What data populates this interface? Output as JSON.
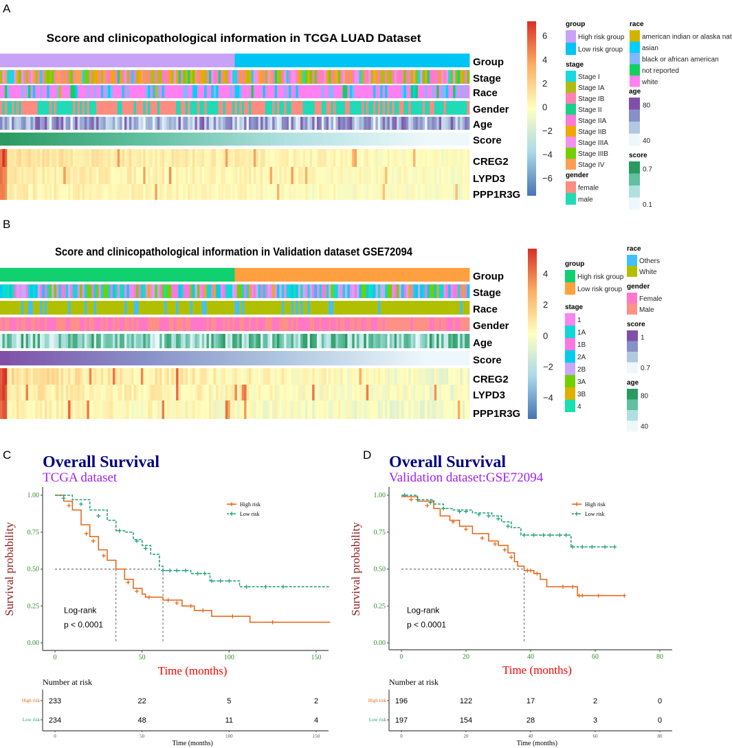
{
  "panels": {
    "a": "A",
    "b": "B",
    "c": "C",
    "d": "D"
  },
  "chart_data": [
    {
      "type": "heatmap",
      "id": "A",
      "title": "Score and clinicopathological information in TCGA LUAD Dataset",
      "row_labels": [
        "Group",
        "Stage",
        "Race",
        "Gender",
        "Age",
        "Score",
        "CREG2",
        "LYPD3",
        "PPP1R3G"
      ],
      "colorbar": {
        "ticks": [
          "6",
          "4",
          "2",
          "0",
          "−2",
          "−4",
          "−6"
        ],
        "range": [
          -7.5,
          7.2
        ],
        "colors": [
          "#4575b4",
          "#abd9e9",
          "#ffffbf",
          "#fdae61",
          "#d73027"
        ]
      },
      "legends": {
        "group": {
          "title": "group",
          "items": [
            {
              "label": "High risk group",
              "color": "#c8a2f6"
            },
            {
              "label": "Low risk group",
              "color": "#00c4f4"
            }
          ]
        },
        "stage": {
          "title": "stage",
          "items": [
            {
              "label": "Stage I",
              "color": "#18d8e0"
            },
            {
              "label": "Stage IA",
              "color": "#b0bd10"
            },
            {
              "label": "Stage IB",
              "color": "#ff82b4"
            },
            {
              "label": "Stage II",
              "color": "#18d088"
            },
            {
              "label": "Stage IIA",
              "color": "#ff78d8"
            },
            {
              "label": "Stage IIB",
              "color": "#f0a800"
            },
            {
              "label": "Stage IIIA",
              "color": "#f490f0"
            },
            {
              "label": "Stage IIIB",
              "color": "#70d000"
            },
            {
              "label": "Stage IV",
              "color": "#ff9e50"
            }
          ]
        },
        "gender": {
          "title": "gender",
          "items": [
            {
              "label": "female",
              "color": "#ff8c80"
            },
            {
              "label": "male",
              "color": "#20dab8"
            }
          ]
        },
        "race": {
          "title": "race",
          "items": [
            {
              "label": "american indian or alaska native",
              "color": "#d4b300"
            },
            {
              "label": "asian",
              "color": "#00d0f8"
            },
            {
              "label": "black or african american",
              "color": "#80b8ff"
            },
            {
              "label": "not reported",
              "color": "#10d060"
            },
            {
              "label": "white",
              "color": "#ff80f0"
            }
          ]
        },
        "age": {
          "title": "age",
          "high": "80",
          "low": "40",
          "colors": [
            "#8050a8",
            "#8890c8",
            "#b0c8e0",
            "#eef8fc"
          ]
        },
        "score": {
          "title": "score",
          "high": "0.7",
          "low": "0.1",
          "colors": [
            "#2a9a60",
            "#60c0a0",
            "#b0e0e0",
            "#eef8fa"
          ]
        }
      },
      "high_risk_fraction": 0.5
    },
    {
      "type": "heatmap",
      "id": "B",
      "title": "Score and clinicopathological information in Validation dataset GSE72094",
      "row_labels": [
        "Group",
        "Stage",
        "Race",
        "Gender",
        "Age",
        "Score",
        "CREG2",
        "LYPD3",
        "PPP1R3G"
      ],
      "colorbar": {
        "ticks": [
          "4",
          "2",
          "0",
          "−2",
          "−4"
        ],
        "range": [
          -5.4,
          5.6
        ],
        "colors": [
          "#4575b4",
          "#abd9e9",
          "#ffffbf",
          "#fdae61",
          "#d73027"
        ]
      },
      "legends": {
        "group": {
          "title": "group",
          "items": [
            {
              "label": "High risk group",
              "color": "#10d070"
            },
            {
              "label": "Low risk group",
              "color": "#ffa040"
            }
          ]
        },
        "stage": {
          "title": "stage",
          "items": [
            {
              "label": "1",
              "color": "#f885f0"
            },
            {
              "label": "1A",
              "color": "#10d8d8"
            },
            {
              "label": "1B",
              "color": "#f878e0"
            },
            {
              "label": "2A",
              "color": "#00ccf0"
            },
            {
              "label": "2B",
              "color": "#c8a8f8"
            },
            {
              "label": "3A",
              "color": "#70d000"
            },
            {
              "label": "3B",
              "color": "#e0b000"
            },
            {
              "label": "4",
              "color": "#18e0b0"
            }
          ]
        },
        "race": {
          "title": "race",
          "items": [
            {
              "label": "Others",
              "color": "#40c0ff"
            },
            {
              "label": "White",
              "color": "#b0c000"
            }
          ]
        },
        "gender": {
          "title": "gender",
          "items": [
            {
              "label": "Female",
              "color": "#ff78c8"
            },
            {
              "label": "Male",
              "color": "#ff9088"
            }
          ]
        },
        "score": {
          "title": "score",
          "high": "1",
          "low": "0.7",
          "colors": [
            "#8050a8",
            "#8890c8",
            "#b0c8e0",
            "#eef8fc"
          ]
        },
        "age": {
          "title": "age",
          "high": "80",
          "low": "40",
          "colors": [
            "#2a9a60",
            "#60c0a0",
            "#b0e0e0",
            "#eef8fa"
          ]
        }
      },
      "high_risk_fraction": 0.5
    },
    {
      "type": "line",
      "id": "C",
      "title": "Overall Survival",
      "subtitle": "TCGA dataset",
      "xlabel": "Time (months)",
      "ylabel": "Survival probability",
      "xlim": [
        0,
        158
      ],
      "ylim": [
        0,
        1
      ],
      "xticks": [
        "0",
        "50",
        "100",
        "150"
      ],
      "xtick_values": [
        0,
        50,
        100,
        150
      ],
      "yticks": [
        "1.00",
        "0.75",
        "0.50",
        "0.25",
        "0.00"
      ],
      "ytick_values": [
        1,
        0.75,
        0.5,
        0.25,
        0
      ],
      "log_rank": "Log-rank",
      "p_value": "p < 0.0001",
      "medians": [
        35,
        62
      ],
      "series": [
        {
          "name": "High risk",
          "color": "#e6600e",
          "dashed": false,
          "points": [
            [
              0,
              1
            ],
            [
              5,
              0.96
            ],
            [
              10,
              0.9
            ],
            [
              15,
              0.8
            ],
            [
              20,
              0.72
            ],
            [
              25,
              0.63
            ],
            [
              30,
              0.56
            ],
            [
              35,
              0.5
            ],
            [
              40,
              0.43
            ],
            [
              45,
              0.37
            ],
            [
              50,
              0.33
            ],
            [
              52,
              0.31
            ],
            [
              62,
              0.29
            ],
            [
              73,
              0.25
            ],
            [
              80,
              0.22
            ],
            [
              90,
              0.18
            ],
            [
              112,
              0.14
            ],
            [
              158,
              0.14
            ]
          ],
          "censored": [
            [
              8,
              0.93
            ],
            [
              18,
              0.74
            ],
            [
              22,
              0.69
            ],
            [
              28,
              0.59
            ],
            [
              42,
              0.41
            ],
            [
              47,
              0.35
            ],
            [
              54,
              0.31
            ],
            [
              65,
              0.29
            ],
            [
              70,
              0.27
            ],
            [
              78,
              0.25
            ],
            [
              85,
              0.22
            ],
            [
              102,
              0.18
            ],
            [
              125,
              0.14
            ]
          ]
        },
        {
          "name": "Low risk",
          "color": "#1a9c74",
          "dashed": true,
          "points": [
            [
              0,
              1
            ],
            [
              10,
              0.97
            ],
            [
              20,
              0.9
            ],
            [
              30,
              0.83
            ],
            [
              35,
              0.76
            ],
            [
              40,
              0.75
            ],
            [
              45,
              0.7
            ],
            [
              50,
              0.66
            ],
            [
              55,
              0.6
            ],
            [
              60,
              0.52
            ],
            [
              62,
              0.49
            ],
            [
              75,
              0.49
            ],
            [
              78,
              0.47
            ],
            [
              88,
              0.47
            ],
            [
              89,
              0.42
            ],
            [
              105,
              0.42
            ],
            [
              106,
              0.38
            ],
            [
              158,
              0.38
            ]
          ],
          "censored": [
            [
              5,
              0.98
            ],
            [
              15,
              0.94
            ],
            [
              25,
              0.86
            ],
            [
              37,
              0.76
            ],
            [
              47,
              0.69
            ],
            [
              52,
              0.64
            ],
            [
              62,
              0.49
            ],
            [
              66,
              0.49
            ],
            [
              70,
              0.49
            ],
            [
              75,
              0.49
            ],
            [
              82,
              0.47
            ],
            [
              86,
              0.47
            ],
            [
              90,
              0.42
            ],
            [
              95,
              0.42
            ],
            [
              100,
              0.42
            ],
            [
              110,
              0.38
            ],
            [
              121,
              0.38
            ],
            [
              131,
              0.38
            ]
          ]
        }
      ],
      "risk_table": {
        "title": "Number at risk",
        "xlabel": "Time (months)",
        "rows": [
          {
            "label": "High risk",
            "values": [
              "233",
              "22",
              "5",
              "2"
            ]
          },
          {
            "label": "Low risk",
            "values": [
              "234",
              "48",
              "11",
              "4"
            ]
          }
        ]
      }
    },
    {
      "type": "line",
      "id": "D",
      "title": "Overall Survival",
      "subtitle": "Validation dataset:GSE72094",
      "xlabel": "Time (months)",
      "ylabel": "Survival probability",
      "xlim": [
        0,
        84
      ],
      "ylim": [
        0,
        1
      ],
      "xticks": [
        "0",
        "20",
        "40",
        "60",
        "80"
      ],
      "xtick_values": [
        0,
        20,
        40,
        60,
        80
      ],
      "yticks": [
        "1.00",
        "0.75",
        "0.50",
        "0.25",
        "0.00"
      ],
      "ytick_values": [
        1,
        0.75,
        0.5,
        0.25,
        0
      ],
      "log_rank": "Log-rank",
      "p_value": "p < 0.0001",
      "medians": [
        38
      ],
      "series": [
        {
          "name": "High risk",
          "color": "#e6600e",
          "dashed": false,
          "points": [
            [
              0,
              0.99
            ],
            [
              5,
              0.96
            ],
            [
              10,
              0.91
            ],
            [
              12,
              0.86
            ],
            [
              15,
              0.83
            ],
            [
              18,
              0.79
            ],
            [
              22,
              0.74
            ],
            [
              27,
              0.69
            ],
            [
              30,
              0.66
            ],
            [
              33,
              0.61
            ],
            [
              35,
              0.55
            ],
            [
              36,
              0.52
            ],
            [
              38,
              0.49
            ],
            [
              41,
              0.47
            ],
            [
              43,
              0.43
            ],
            [
              45,
              0.38
            ],
            [
              54,
              0.38
            ],
            [
              54.5,
              0.32
            ],
            [
              69,
              0.32
            ]
          ],
          "censored": [
            [
              3,
              0.97
            ],
            [
              8,
              0.93
            ],
            [
              16,
              0.82
            ],
            [
              20,
              0.77
            ],
            [
              25,
              0.71
            ],
            [
              29,
              0.67
            ],
            [
              32,
              0.63
            ],
            [
              34,
              0.58
            ],
            [
              39,
              0.49
            ],
            [
              40,
              0.49
            ],
            [
              42,
              0.47
            ],
            [
              50,
              0.38
            ],
            [
              53,
              0.38
            ],
            [
              55,
              0.32
            ],
            [
              56,
              0.32
            ],
            [
              61,
              0.32
            ],
            [
              69,
              0.32
            ]
          ]
        },
        {
          "name": "Low risk",
          "color": "#1a9c74",
          "dashed": true,
          "points": [
            [
              0,
              1
            ],
            [
              5,
              0.97
            ],
            [
              10,
              0.94
            ],
            [
              13,
              0.91
            ],
            [
              16,
              0.9
            ],
            [
              22,
              0.88
            ],
            [
              28,
              0.86
            ],
            [
              31,
              0.82
            ],
            [
              34,
              0.78
            ],
            [
              37,
              0.73
            ],
            [
              52,
              0.73
            ],
            [
              52.5,
              0.65
            ],
            [
              66,
              0.65
            ]
          ],
          "censored": [
            [
              1,
              1
            ],
            [
              5,
              0.97
            ],
            [
              9,
              0.95
            ],
            [
              13,
              0.91
            ],
            [
              18,
              0.89
            ],
            [
              20,
              0.89
            ],
            [
              24,
              0.87
            ],
            [
              27,
              0.86
            ],
            [
              30,
              0.84
            ],
            [
              33,
              0.79
            ],
            [
              38,
              0.73
            ],
            [
              41,
              0.73
            ],
            [
              44,
              0.73
            ],
            [
              46,
              0.73
            ],
            [
              49,
              0.73
            ],
            [
              51,
              0.73
            ],
            [
              53,
              0.65
            ],
            [
              56,
              0.65
            ],
            [
              59,
              0.65
            ],
            [
              63,
              0.65
            ],
            [
              66,
              0.65
            ]
          ]
        }
      ],
      "risk_table": {
        "title": "Number at risk",
        "xlabel": "Time (months)",
        "rows": [
          {
            "label": "High risk",
            "values": [
              "196",
              "122",
              "17",
              "2",
              "0"
            ]
          },
          {
            "label": "Low risk",
            "values": [
              "197",
              "154",
              "28",
              "3",
              "0"
            ]
          }
        ]
      }
    }
  ]
}
